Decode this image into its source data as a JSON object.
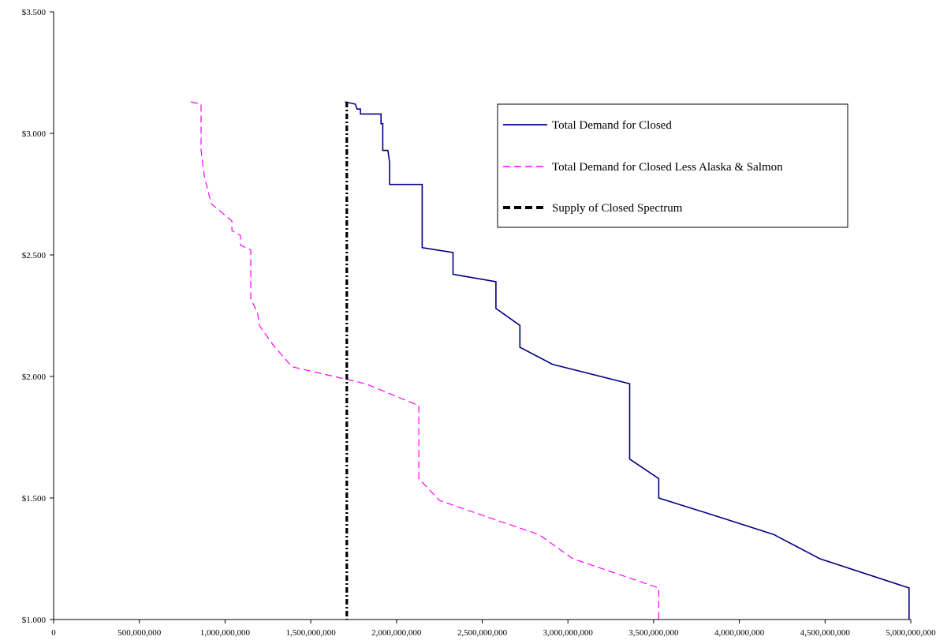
{
  "chart_data": {
    "type": "line",
    "title": "",
    "xlabel": "",
    "ylabel": "",
    "xlim": [
      0,
      5000000000
    ],
    "ylim": [
      1.0,
      3.5
    ],
    "x_ticks": [
      "0",
      "500,000,000",
      "1,000,000,000",
      "1,500,000,000",
      "2,000,000,000",
      "2,500,000,000",
      "3,000,000,000",
      "3,500,000,000",
      "4,000,000,000",
      "4,500,000,000",
      "5,000,000,000"
    ],
    "y_ticks": [
      "$1.000",
      "$1.500",
      "$2.000",
      "$2.500",
      "$3.000",
      "$3.500"
    ],
    "grid": false,
    "legend_position": "top-right",
    "series": [
      {
        "name": "Total Demand for Closed",
        "color": "#000080",
        "style": "solid",
        "points": [
          [
            1700000000,
            3.13
          ],
          [
            1760000000,
            3.12
          ],
          [
            1770000000,
            3.1
          ],
          [
            1790000000,
            3.1
          ],
          [
            1790000000,
            3.08
          ],
          [
            1910000000,
            3.08
          ],
          [
            1910000000,
            3.04
          ],
          [
            1920000000,
            3.04
          ],
          [
            1920000000,
            2.93
          ],
          [
            1950000000,
            2.93
          ],
          [
            1960000000,
            2.88
          ],
          [
            1960000000,
            2.79
          ],
          [
            2150000000,
            2.79
          ],
          [
            2150000000,
            2.53
          ],
          [
            2330000000,
            2.51
          ],
          [
            2330000000,
            2.42
          ],
          [
            2580000000,
            2.39
          ],
          [
            2580000000,
            2.28
          ],
          [
            2720000000,
            2.21
          ],
          [
            2720000000,
            2.12
          ],
          [
            2910000000,
            2.05
          ],
          [
            3360000000,
            1.97
          ],
          [
            3360000000,
            1.66
          ],
          [
            3530000000,
            1.58
          ],
          [
            3530000000,
            1.5
          ],
          [
            3890000000,
            1.42
          ],
          [
            4200000000,
            1.35
          ],
          [
            4470000000,
            1.25
          ],
          [
            4990000000,
            1.13
          ],
          [
            4990000000,
            1.0
          ]
        ]
      },
      {
        "name": "Total Demand for Closed Less Alaska & Salmon",
        "color": "#ff00ff",
        "style": "dashed",
        "points": [
          [
            800000000,
            3.13
          ],
          [
            860000000,
            3.12
          ],
          [
            860000000,
            2.93
          ],
          [
            880000000,
            2.82
          ],
          [
            920000000,
            2.71
          ],
          [
            1040000000,
            2.64
          ],
          [
            1040000000,
            2.6
          ],
          [
            1090000000,
            2.58
          ],
          [
            1090000000,
            2.54
          ],
          [
            1150000000,
            2.52
          ],
          [
            1150000000,
            2.32
          ],
          [
            1190000000,
            2.26
          ],
          [
            1200000000,
            2.21
          ],
          [
            1280000000,
            2.13
          ],
          [
            1390000000,
            2.04
          ],
          [
            1820000000,
            1.97
          ],
          [
            2130000000,
            1.88
          ],
          [
            2130000000,
            1.58
          ],
          [
            2250000000,
            1.49
          ],
          [
            2620000000,
            1.4
          ],
          [
            2830000000,
            1.35
          ],
          [
            3030000000,
            1.25
          ],
          [
            3530000000,
            1.13
          ],
          [
            3530000000,
            1.0
          ]
        ]
      },
      {
        "name": "Supply of Closed Spectrum",
        "color": "#000000",
        "style": "dashdot",
        "points": [
          [
            1710000000,
            3.13
          ],
          [
            1710000000,
            1.0
          ]
        ]
      }
    ]
  }
}
